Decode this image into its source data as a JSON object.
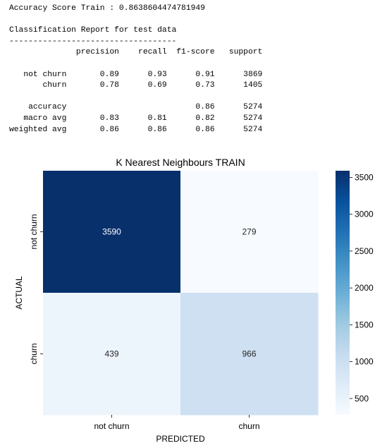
{
  "accuracy_line": "Accuracy Score Train : 0.8638604474781949",
  "report_title": "Classification Report for test data",
  "report_rule": "-----------------------------------",
  "report_header": "              precision    recall  f1-score   support",
  "report_rows": [
    "   not churn       0.89      0.93      0.91      3869",
    "       churn       0.78      0.69      0.73      1405",
    "",
    "    accuracy                           0.86      5274",
    "   macro avg       0.83      0.81      0.82      5274",
    "weighted avg       0.86      0.86      0.86      5274"
  ],
  "chart_data": {
    "type": "heatmap",
    "title": "K Nearest Neighbours TRAIN",
    "xlabel": "PREDICTED",
    "ylabel": "ACTUAL",
    "x_categories": [
      "not churn",
      "churn"
    ],
    "y_categories": [
      "not churn",
      "churn"
    ],
    "values": [
      [
        3590,
        279
      ],
      [
        439,
        966
      ]
    ],
    "colormap": "Blues",
    "colorbar": {
      "min": 279,
      "max": 3590,
      "ticks": [
        500,
        1000,
        1500,
        2000,
        2500,
        3000,
        3500
      ]
    },
    "colors": {
      "dark": "#08306b",
      "light": "#f7fbff"
    }
  }
}
